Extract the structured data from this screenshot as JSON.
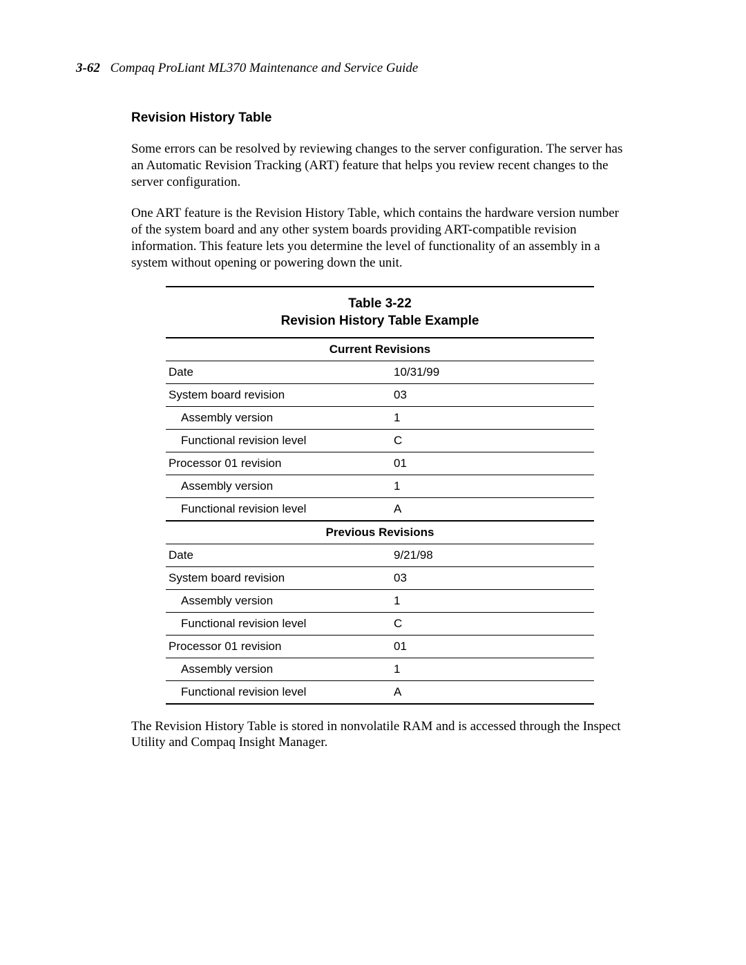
{
  "header": {
    "page_number": "3-62",
    "doc_title": "Compaq ProLiant ML370 Maintenance and Service Guide"
  },
  "section": {
    "heading": "Revision History Table",
    "para1": "Some errors can be resolved by reviewing changes to the server configuration. The server has an Automatic Revision Tracking (ART) feature that helps you review recent changes to the server configuration.",
    "para2": "One ART feature is the Revision History Table, which contains the hardware version number of the system board and any other system boards providing ART-compatible revision information. This feature lets you determine the level of functionality of an assembly in a system without opening or powering down the unit.",
    "para3": "The Revision History Table is stored in nonvolatile RAM and is accessed through the Inspect Utility and Compaq Insight Manager."
  },
  "table": {
    "caption_line1": "Table 3-22",
    "caption_line2": "Revision History Table Example",
    "section1_header": "Current Revisions",
    "section2_header": "Previous Revisions",
    "labels": {
      "date": "Date",
      "sys_board": "System board revision",
      "assembly": "Assembly version",
      "func_rev": "Functional revision level",
      "proc01": "Processor 01 revision"
    },
    "current": {
      "date": "10/31/99",
      "sys_board": "03",
      "assembly1": "1",
      "func_rev1": "C",
      "proc01": "01",
      "assembly2": "1",
      "func_rev2": "A"
    },
    "previous": {
      "date": "9/21/98",
      "sys_board": "03",
      "assembly1": "1",
      "func_rev1": "C",
      "proc01": "01",
      "assembly2": "1",
      "func_rev2": "A"
    }
  }
}
